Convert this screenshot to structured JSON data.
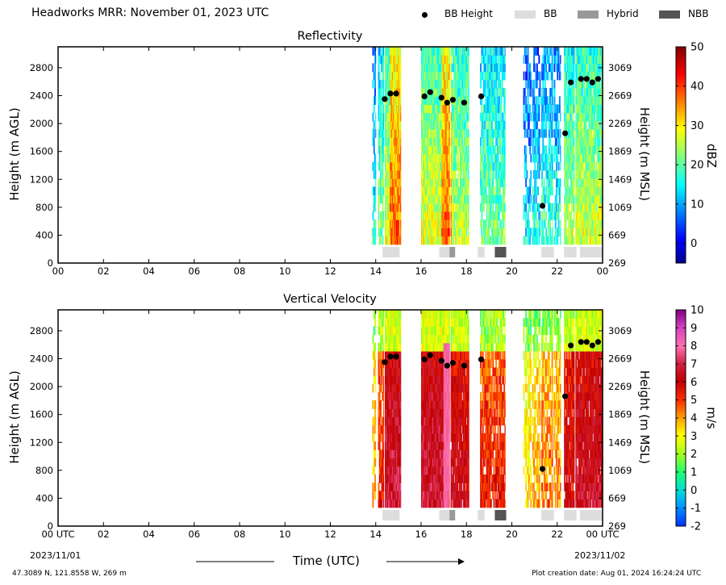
{
  "header": {
    "title": "Headworks MRR:  November 01, 2023 UTC"
  },
  "legend": [
    {
      "label": "BB Height",
      "kind": "dot",
      "color": "#000000"
    },
    {
      "label": "BB",
      "kind": "box",
      "color": "#dddddd"
    },
    {
      "label": "Hybrid",
      "kind": "box",
      "color": "#999999"
    },
    {
      "label": "NBB",
      "kind": "box",
      "color": "#555555"
    }
  ],
  "footer": {
    "location": "47.3089 N, 121.8558 W, 269 m",
    "created": "Plot creation date: Aug 01, 2024 16:24:24 UTC",
    "start_date": "2023/11/01",
    "end_date": "2023/11/02",
    "xlabel": "Time (UTC)"
  },
  "chart_data": [
    {
      "type": "heatmap",
      "title": "Reflectivity",
      "ylabel": "Height (m AGL)",
      "ylabel_right": "Height (m MSL)",
      "colorbar_label": "dBZ",
      "xlim": [
        0,
        24
      ],
      "ylim": [
        0,
        3100
      ],
      "x_ticks": [
        "00",
        "02",
        "04",
        "06",
        "08",
        "10",
        "12",
        "14",
        "16",
        "18",
        "20",
        "22",
        "00"
      ],
      "y_ticks": [
        0,
        400,
        800,
        1200,
        1600,
        2000,
        2400,
        2800
      ],
      "y_ticks_right": [
        269,
        669,
        1069,
        1469,
        1869,
        2269,
        2669,
        3069
      ],
      "colorbar": {
        "min": -5,
        "max": 50,
        "ticks": [
          0,
          10,
          20,
          30,
          40,
          50
        ]
      },
      "bb_height": [
        {
          "t": 14.4,
          "h": 2350
        },
        {
          "t": 14.65,
          "h": 2430
        },
        {
          "t": 14.9,
          "h": 2430
        },
        {
          "t": 16.15,
          "h": 2390
        },
        {
          "t": 16.4,
          "h": 2450
        },
        {
          "t": 16.9,
          "h": 2370
        },
        {
          "t": 17.15,
          "h": 2300
        },
        {
          "t": 17.4,
          "h": 2340
        },
        {
          "t": 17.9,
          "h": 2300
        },
        {
          "t": 18.65,
          "h": 2390
        },
        {
          "t": 21.35,
          "h": 820
        },
        {
          "t": 22.35,
          "h": 1860
        },
        {
          "t": 22.6,
          "h": 2590
        },
        {
          "t": 23.05,
          "h": 2640
        },
        {
          "t": 23.3,
          "h": 2640
        },
        {
          "t": 23.55,
          "h": 2590
        },
        {
          "t": 23.8,
          "h": 2640
        }
      ]
    },
    {
      "type": "heatmap",
      "title": "Vertical Velocity",
      "ylabel": "Height (m AGL)",
      "ylabel_right": "Height (m MSL)",
      "colorbar_label": "m/s",
      "xlim": [
        0,
        24
      ],
      "ylim": [
        0,
        3100
      ],
      "x_ticks": [
        "00 UTC",
        "02",
        "04",
        "06",
        "08",
        "10",
        "12",
        "14",
        "16",
        "18",
        "20",
        "22",
        "00 UTC"
      ],
      "y_ticks": [
        0,
        400,
        800,
        1200,
        1600,
        2000,
        2400,
        2800
      ],
      "y_ticks_right": [
        269,
        669,
        1069,
        1469,
        1869,
        2269,
        2669,
        3069
      ],
      "colorbar": {
        "min": -2,
        "max": 10,
        "ticks": [
          -2,
          -1,
          0,
          1,
          2,
          3,
          4,
          5,
          6,
          7,
          8,
          9,
          10
        ]
      },
      "bb_height": [
        {
          "t": 14.4,
          "h": 2350
        },
        {
          "t": 14.65,
          "h": 2430
        },
        {
          "t": 14.9,
          "h": 2430
        },
        {
          "t": 16.15,
          "h": 2390
        },
        {
          "t": 16.4,
          "h": 2450
        },
        {
          "t": 16.9,
          "h": 2370
        },
        {
          "t": 17.15,
          "h": 2300
        },
        {
          "t": 17.4,
          "h": 2340
        },
        {
          "t": 17.9,
          "h": 2300
        },
        {
          "t": 18.65,
          "h": 2390
        },
        {
          "t": 21.35,
          "h": 820
        },
        {
          "t": 22.35,
          "h": 1860
        },
        {
          "t": 22.6,
          "h": 2590
        },
        {
          "t": 23.05,
          "h": 2640
        },
        {
          "t": 23.3,
          "h": 2640
        },
        {
          "t": 23.55,
          "h": 2590
        },
        {
          "t": 23.8,
          "h": 2640
        }
      ]
    }
  ],
  "bb_type": [
    {
      "start": 14.3,
      "end": 15.05,
      "type": "BB"
    },
    {
      "start": 16.8,
      "end": 17.25,
      "type": "BB"
    },
    {
      "start": 17.25,
      "end": 17.5,
      "type": "Hybrid"
    },
    {
      "start": 18.5,
      "end": 18.8,
      "type": "BB"
    },
    {
      "start": 19.25,
      "end": 19.75,
      "type": "NBB"
    },
    {
      "start": 21.3,
      "end": 21.85,
      "type": "BB"
    },
    {
      "start": 22.3,
      "end": 22.85,
      "type": "BB"
    },
    {
      "start": 23.0,
      "end": 24.0,
      "type": "BB"
    }
  ],
  "rain_periods": [
    [
      13.85,
      14.0,
      0.4
    ],
    [
      14.1,
      14.35,
      0.7
    ],
    [
      14.4,
      15.1,
      1.0
    ],
    [
      16.0,
      17.25,
      1.0
    ],
    [
      17.3,
      18.1,
      0.9
    ],
    [
      18.6,
      19.7,
      0.7
    ],
    [
      20.5,
      20.85,
      0.3
    ],
    [
      20.9,
      21.25,
      0.4
    ],
    [
      21.3,
      21.8,
      0.5
    ],
    [
      21.85,
      22.15,
      0.45
    ],
    [
      22.3,
      22.75,
      0.85
    ],
    [
      22.8,
      24.0,
      0.95
    ]
  ]
}
